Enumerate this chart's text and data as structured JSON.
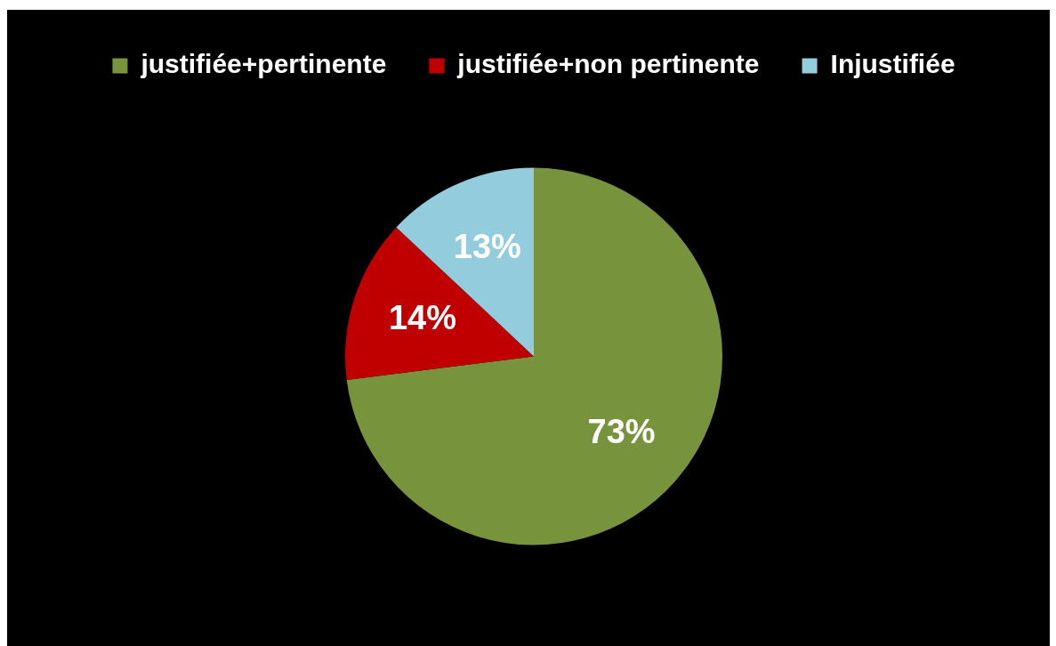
{
  "chart_data": {
    "type": "pie",
    "categories": [
      "justifiée+pertinente",
      "justifiée+non pertinente",
      "Injustifiée"
    ],
    "values": [
      73,
      14,
      13
    ],
    "colors": [
      "#77933c",
      "#c00000",
      "#93cddd"
    ],
    "value_labels": [
      "73%",
      "14%",
      "13%"
    ],
    "legend": "top"
  }
}
